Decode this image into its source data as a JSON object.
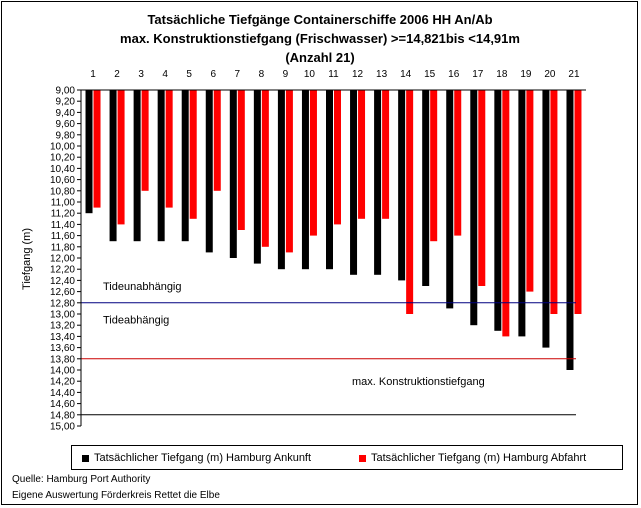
{
  "chart_data": {
    "type": "bar",
    "title_lines": [
      "Tatsächliche Tiefgänge Containerschiffe 2006 HH An/Ab",
      "max. Konstruktionstiefgang (Frischwasser) >=14,821bis <14,91m",
      "(Anzahl 21)"
    ],
    "ylabel": "Tiefgang (m)",
    "ylim": [
      9.0,
      15.0
    ],
    "y_inverted": true,
    "y_tick_step": 0.2,
    "y_tick_labels": [
      "9,00",
      "9,20",
      "9,40",
      "9,60",
      "9,80",
      "10,00",
      "10,20",
      "10,40",
      "10,60",
      "10,80",
      "11,00",
      "11,20",
      "11,40",
      "11,60",
      "11,80",
      "12,00",
      "12,20",
      "12,40",
      "12,60",
      "12,80",
      "13,00",
      "13,20",
      "13,40",
      "13,60",
      "13,80",
      "14,00",
      "14,20",
      "14,40",
      "14,60",
      "14,80",
      "15,00"
    ],
    "categories": [
      "1",
      "2",
      "3",
      "4",
      "5",
      "6",
      "7",
      "8",
      "9",
      "10",
      "11",
      "12",
      "13",
      "14",
      "15",
      "16",
      "17",
      "18",
      "19",
      "20",
      "21"
    ],
    "series": [
      {
        "name": "Tatsächlicher Tiefgang (m) Hamburg Ankunft",
        "color": "#000000",
        "values": [
          11.2,
          11.7,
          11.7,
          11.7,
          11.7,
          11.9,
          12.0,
          12.1,
          12.2,
          12.2,
          12.2,
          12.3,
          12.3,
          12.4,
          12.5,
          12.9,
          13.2,
          13.3,
          13.4,
          13.6,
          14.0
        ]
      },
      {
        "name": "Tatsächlicher Tiefgang (m) Hamburg Abfahrt",
        "color": "#ff0000",
        "values": [
          11.1,
          11.4,
          10.8,
          11.1,
          11.3,
          10.8,
          11.5,
          11.8,
          11.9,
          11.6,
          11.4,
          11.3,
          11.3,
          13.0,
          11.7,
          11.6,
          12.5,
          13.4,
          12.6,
          13.0,
          13.0
        ]
      }
    ],
    "reference_lines": [
      {
        "value": 12.8,
        "color": "#000080"
      },
      {
        "value": 13.8,
        "color": "#cc0000"
      },
      {
        "value": 14.8,
        "color": "#000000"
      }
    ],
    "annotations": [
      {
        "text": "Tideunabhängig",
        "at_value": 12.5
      },
      {
        "text": "Tideabhängig",
        "at_value": 13.1
      },
      {
        "text": "max. Konstruktionstiefgang",
        "at_value": 14.2
      }
    ],
    "grid": false,
    "legend_position": "bottom"
  },
  "sources": [
    "Quelle: Hamburg Port Authority",
    "Eigene Auswertung Förderkreis Rettet die Elbe"
  ]
}
